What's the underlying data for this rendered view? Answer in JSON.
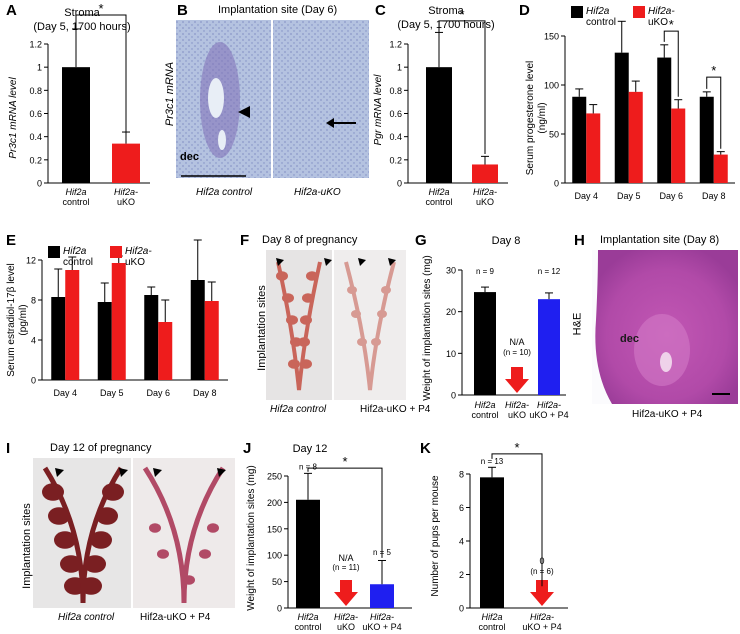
{
  "panels": {
    "A": {
      "label": "A",
      "title_line1": "Stroma",
      "title_line2": "(Day 5, 1700 hours)",
      "ylabel": "Pr3c1 mRNA level",
      "star": "*"
    },
    "B": {
      "label": "B",
      "title": "Implantation site (Day 6)",
      "ylabel": "Pr3c1 mRNA",
      "dec": "dec",
      "cap_left": "Hif2a control",
      "cap_right": "Hif2a-uKO"
    },
    "C": {
      "label": "C",
      "title_line1": "Stroma",
      "title_line2": "(Day 5, 1700 hours)",
      "ylabel": "Pgr mRNA level",
      "star": "*"
    },
    "D": {
      "label": "D",
      "ylabel_line1": "Serum progesterone level",
      "ylabel_line2": "(ng/ml)",
      "legend": [
        "Hif2a control",
        "Hif2a-uKO"
      ],
      "star": "*"
    },
    "E": {
      "label": "E",
      "ylabel_line1": "Serum estradiol-17β level",
      "ylabel_line2": "(pg/ml)",
      "legend": [
        "Hif2a control",
        "Hif2a-uKO"
      ]
    },
    "F": {
      "label": "F",
      "title": "Day 8 of pregnancy",
      "ylabel": "Implantation sites",
      "cap_left": "Hif2a control",
      "cap_right": "Hif2a-uKO + P4"
    },
    "G": {
      "label": "G",
      "title": "Day 8",
      "ylabel": "Weight of implantation sites (mg)",
      "na": "N/A",
      "n_labels": [
        "n = 9",
        "(n = 10)",
        "n = 12"
      ]
    },
    "H": {
      "label": "H",
      "title": "Implantation site (Day 8)",
      "side": "H&E",
      "dec": "dec",
      "caption": "Hif2a-uKO + P4"
    },
    "I": {
      "label": "I",
      "title": "Day 12 of pregnancy",
      "ylabel": "Implantation sites",
      "cap_left": "Hif2a control",
      "cap_right": "Hif2a-uKO + P4"
    },
    "J": {
      "label": "J",
      "title": "Day 12",
      "ylabel": "Weight of implantation sites (mg)",
      "na": "N/A",
      "n_labels": [
        "n = 8",
        "(n = 11)",
        "n = 5"
      ],
      "star": "*"
    },
    "K": {
      "label": "K",
      "ylabel": "Number of pups per mouse",
      "n_labels": [
        "n = 13",
        "(n = 6)"
      ],
      "zero": "0",
      "star": "*"
    }
  },
  "colors": {
    "control": "#000000",
    "uko": "#ee1c1c",
    "p4": "#1f1ff0",
    "arrow": "#ee1c1c"
  },
  "chart_data": [
    {
      "id": "A",
      "type": "bar",
      "categories": [
        "Hif2a control",
        "Hif2a-uKO"
      ],
      "values": [
        1.0,
        0.34
      ],
      "errors": [
        0.33,
        0.1
      ],
      "ylim": [
        0,
        1.2
      ],
      "yticks": [
        0,
        0.2,
        0.4,
        0.6,
        0.8,
        1.0,
        1.2
      ],
      "ytick_labels": [
        "0",
        "0.2",
        "0.4",
        "0.6",
        "0.8",
        "1",
        "1.2"
      ]
    },
    {
      "id": "C",
      "type": "bar",
      "categories": [
        "Hif2a control",
        "Hif2a-uKO"
      ],
      "values": [
        1.0,
        0.16
      ],
      "errors": [
        0.3,
        0.07
      ],
      "ylim": [
        0,
        1.2
      ],
      "yticks": [
        0,
        0.2,
        0.4,
        0.6,
        0.8,
        1.0,
        1.2
      ],
      "ytick_labels": [
        "0",
        "0.2",
        "0.4",
        "0.6",
        "0.8",
        "1",
        "1.2"
      ]
    },
    {
      "id": "D",
      "type": "bar",
      "categories": [
        "Day 4",
        "Day 5",
        "Day 6",
        "Day 8"
      ],
      "series": [
        {
          "name": "Hif2a control",
          "values": [
            88,
            133,
            128,
            88
          ],
          "errors": [
            8,
            32,
            13,
            5
          ]
        },
        {
          "name": "Hif2a-uKO",
          "values": [
            71,
            93,
            76,
            29
          ],
          "errors": [
            9,
            11,
            9,
            3
          ]
        }
      ],
      "ylim": [
        0,
        150
      ],
      "yticks": [
        0,
        50,
        100,
        150
      ]
    },
    {
      "id": "E",
      "type": "bar",
      "categories": [
        "Day 4",
        "Day 5",
        "Day 6",
        "Day 8"
      ],
      "series": [
        {
          "name": "Hif2a control",
          "values": [
            8.3,
            7.8,
            8.5,
            10.0
          ],
          "errors": [
            2.8,
            1.9,
            0.8,
            4.0
          ]
        },
        {
          "name": "Hif2a-uKO",
          "values": [
            11.0,
            11.7,
            5.8,
            7.9
          ],
          "errors": [
            1.3,
            0.7,
            2.2,
            1.9
          ]
        }
      ],
      "ylim": [
        0,
        12
      ],
      "yticks": [
        0,
        4,
        8,
        12
      ]
    },
    {
      "id": "G",
      "type": "bar",
      "categories": [
        "Hif2a control",
        "Hif2a-uKO",
        "Hif2a-uKO + P4"
      ],
      "values": [
        24.7,
        null,
        23.0
      ],
      "errors": [
        1.2,
        null,
        1.5
      ],
      "ylim": [
        0,
        30
      ],
      "yticks": [
        0,
        10,
        20,
        30
      ]
    },
    {
      "id": "J",
      "type": "bar",
      "categories": [
        "Hif2a control",
        "Hif2a-uKO",
        "Hif2a-uKO + P4"
      ],
      "values": [
        205,
        null,
        45
      ],
      "errors": [
        50,
        null,
        45
      ],
      "ylim": [
        0,
        250
      ],
      "yticks": [
        0,
        50,
        100,
        150,
        200,
        250
      ]
    },
    {
      "id": "K",
      "type": "bar",
      "categories": [
        "Hif2a control",
        "Hif2a-uKO + P4"
      ],
      "values": [
        7.8,
        0
      ],
      "errors": [
        0.6,
        0
      ],
      "ylim": [
        0,
        8
      ],
      "yticks": [
        0,
        2,
        4,
        6,
        8
      ]
    }
  ]
}
